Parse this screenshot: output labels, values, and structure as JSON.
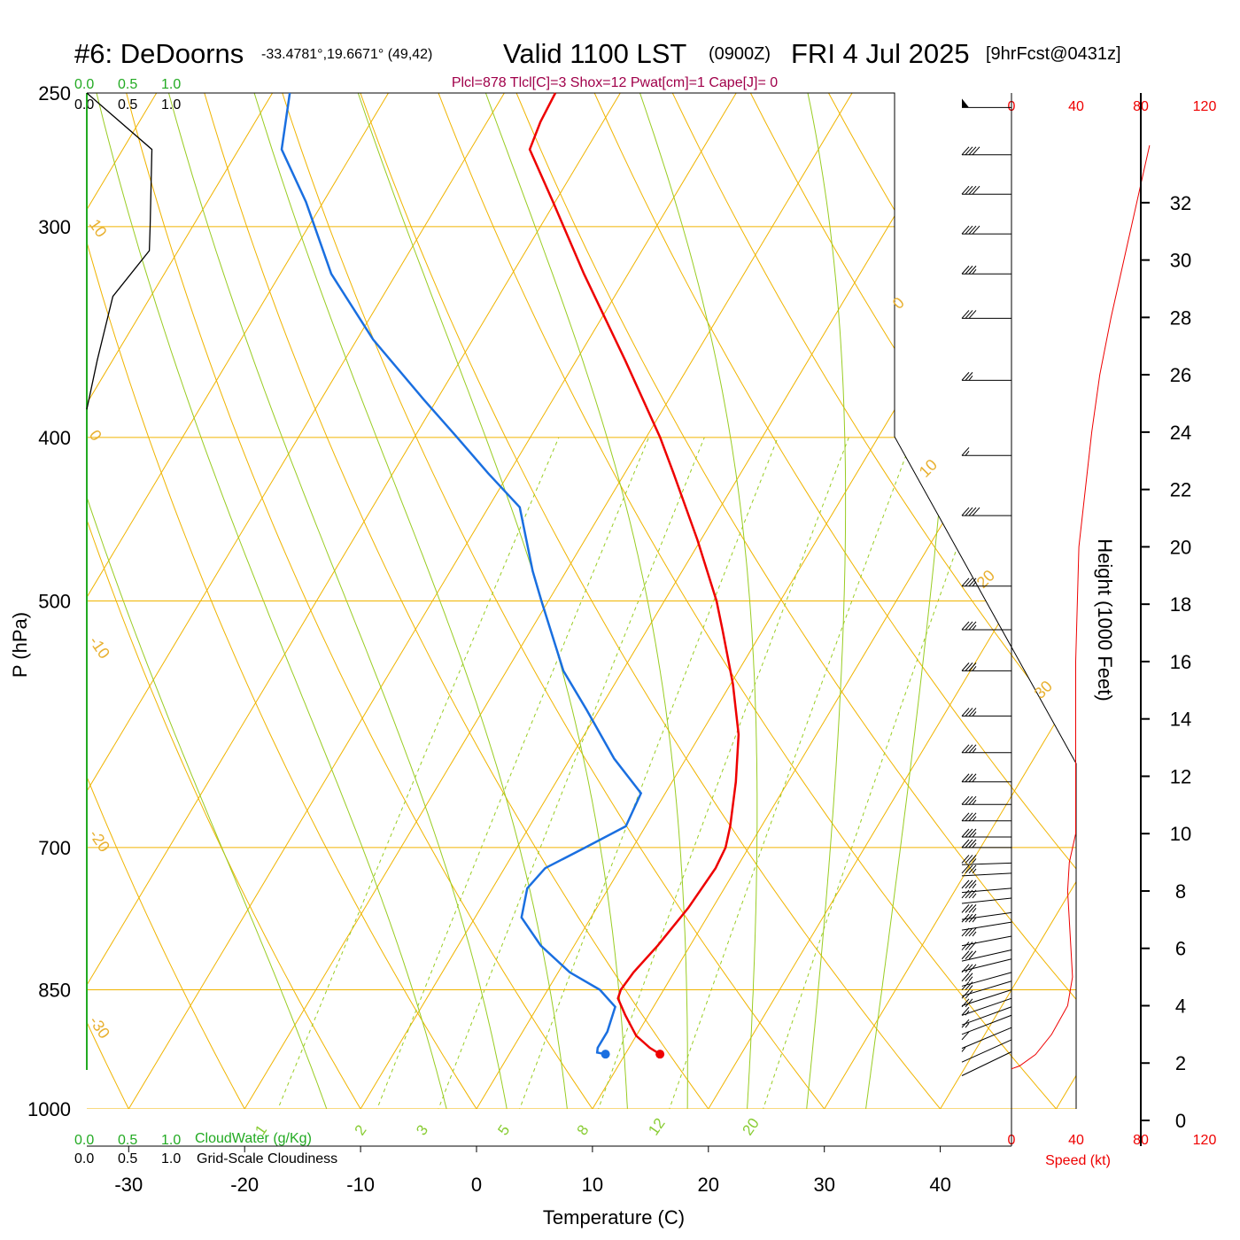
{
  "header": {
    "station": "#6: DeDoorns",
    "coords": "-33.4781°,19.6671° (49,42)",
    "valid": "Valid 1100 LST",
    "zulu": "(0900Z)",
    "date": "FRI 4 Jul 2025",
    "forecast": "[9hrFcst@0431z]",
    "stats": "Plcl=878 Tlcl[C]=3 Shox=12 Pwat[cm]=1 Cape[J]= 0"
  },
  "cloud_scale": {
    "green_ticks": [
      "0.0",
      "0.5",
      "1.0"
    ],
    "black_ticks": [
      "0.0",
      "0.5",
      "1.0"
    ],
    "cloudwater_label": "CloudWater (g/Kg)",
    "cloudiness_label": "Grid-Scale Cloudiness"
  },
  "speed_axis": {
    "ticks": [
      "0",
      "40",
      "80",
      "120"
    ],
    "label": "Speed (kt)"
  },
  "colors": {
    "temperature": "#ee0000",
    "dewpoint": "#1a6fe0",
    "isotherm": "#f0b400",
    "dry_adiabat": "#f0b400",
    "moist_adiabat": "#99cc22",
    "mixing_ratio": "#99cc22",
    "wind_speed": "#ee0000",
    "cloudiness": "#000000",
    "cloud_axis": "#22aa22"
  },
  "chart_data": {
    "type": "line",
    "subtype": "skew-T log-P sounding",
    "xlabel": "Temperature (C)",
    "ylabel": "P (hPa)",
    "y2label": "Height (1000 Feet)",
    "x_ticks": [
      -30,
      -20,
      -10,
      0,
      10,
      20,
      30,
      40
    ],
    "y_ticks": [
      250,
      300,
      400,
      500,
      700,
      850,
      1000
    ],
    "y_scale": "log",
    "ylim": [
      1000,
      250
    ],
    "height_ticks": [
      0,
      2,
      4,
      6,
      8,
      10,
      12,
      14,
      16,
      18,
      20,
      22,
      24,
      26,
      28,
      30,
      32
    ],
    "isotherm_labels": [
      "10",
      "0",
      "-10",
      "-20",
      "-30"
    ],
    "isotherm_labels_right": [
      "0",
      "10",
      "20",
      "30"
    ],
    "mixing_ratio_labels": [
      "1",
      "2",
      "3",
      "5",
      "8",
      "12",
      "20"
    ],
    "series": [
      {
        "name": "Temperature",
        "p": [
          928,
          920,
          905,
          880,
          860,
          850,
          830,
          800,
          760,
          720,
          700,
          680,
          640,
          600,
          560,
          520,
          500,
          460,
          420,
          400,
          360,
          320,
          290,
          270,
          260,
          250
        ],
        "value": [
          13.0,
          11.8,
          10.0,
          8.0,
          6.5,
          6.3,
          6.5,
          7.2,
          7.9,
          8.2,
          8.0,
          7.3,
          5.5,
          3.3,
          0.2,
          -3.5,
          -5.5,
          -10.3,
          -15.8,
          -18.8,
          -25.8,
          -33.8,
          -40.2,
          -44.9,
          -45.4,
          -45.6
        ]
      },
      {
        "name": "Dewpoint",
        "p": [
          928,
          926,
          920,
          900,
          870,
          850,
          830,
          800,
          770,
          740,
          720,
          700,
          680,
          650,
          620,
          580,
          550,
          500,
          480,
          440,
          420,
          400,
          380,
          350,
          320,
          290,
          270,
          250
        ],
        "value": [
          8.3,
          7.5,
          7.3,
          7.3,
          6.7,
          4.5,
          1.0,
          -2.9,
          -6.0,
          -7.0,
          -6.5,
          -4.1,
          -1.7,
          -2.1,
          -6.2,
          -11.1,
          -15.1,
          -20.6,
          -22.9,
          -27.3,
          -31.8,
          -36.3,
          -41.1,
          -48.6,
          -55.6,
          -61.5,
          -66.3,
          -68.5
        ]
      }
    ],
    "wind_speed_profile": {
      "name": "Wind speed (kt)",
      "height_kft": [
        1.8,
        1.9,
        2.3,
        3.0,
        4.0,
        5.0,
        6.0,
        8.0,
        9.0,
        10.0,
        11.0,
        12.0,
        13.0,
        16.0,
        20.0,
        24.0,
        26.0,
        28.0,
        30.0,
        32.0,
        33.0,
        34.0
      ],
      "speed": [
        0,
        5,
        15,
        25,
        35,
        38,
        37,
        35,
        36,
        40,
        40,
        40,
        40,
        40,
        42,
        50,
        55,
        62,
        70,
        78,
        82,
        86
      ]
    },
    "cloudiness_profile": {
      "name": "Grid-Scale Cloudiness",
      "p": [
        250,
        270,
        300,
        310,
        330,
        360,
        385
      ],
      "value": [
        0.0,
        0.75,
        0.73,
        0.72,
        0.3,
        0.12,
        0.0
      ]
    },
    "wind_barbs": {
      "p": [
        255,
        272,
        287,
        303,
        320,
        340,
        370,
        410,
        445,
        490,
        520,
        550,
        585,
        615,
        640,
        660,
        675,
        690,
        700,
        715,
        725,
        740,
        750,
        765,
        775,
        790,
        805,
        815,
        830,
        840,
        850,
        860,
        870,
        880,
        895,
        910,
        925
      ],
      "speed_kt": [
        50,
        40,
        40,
        40,
        35,
        30,
        25,
        15,
        40,
        35,
        35,
        35,
        35,
        35,
        35,
        35,
        35,
        35,
        35,
        35,
        35,
        35,
        35,
        35,
        35,
        35,
        30,
        30,
        30,
        25,
        25,
        20,
        20,
        15,
        15,
        10,
        5
      ]
    }
  }
}
